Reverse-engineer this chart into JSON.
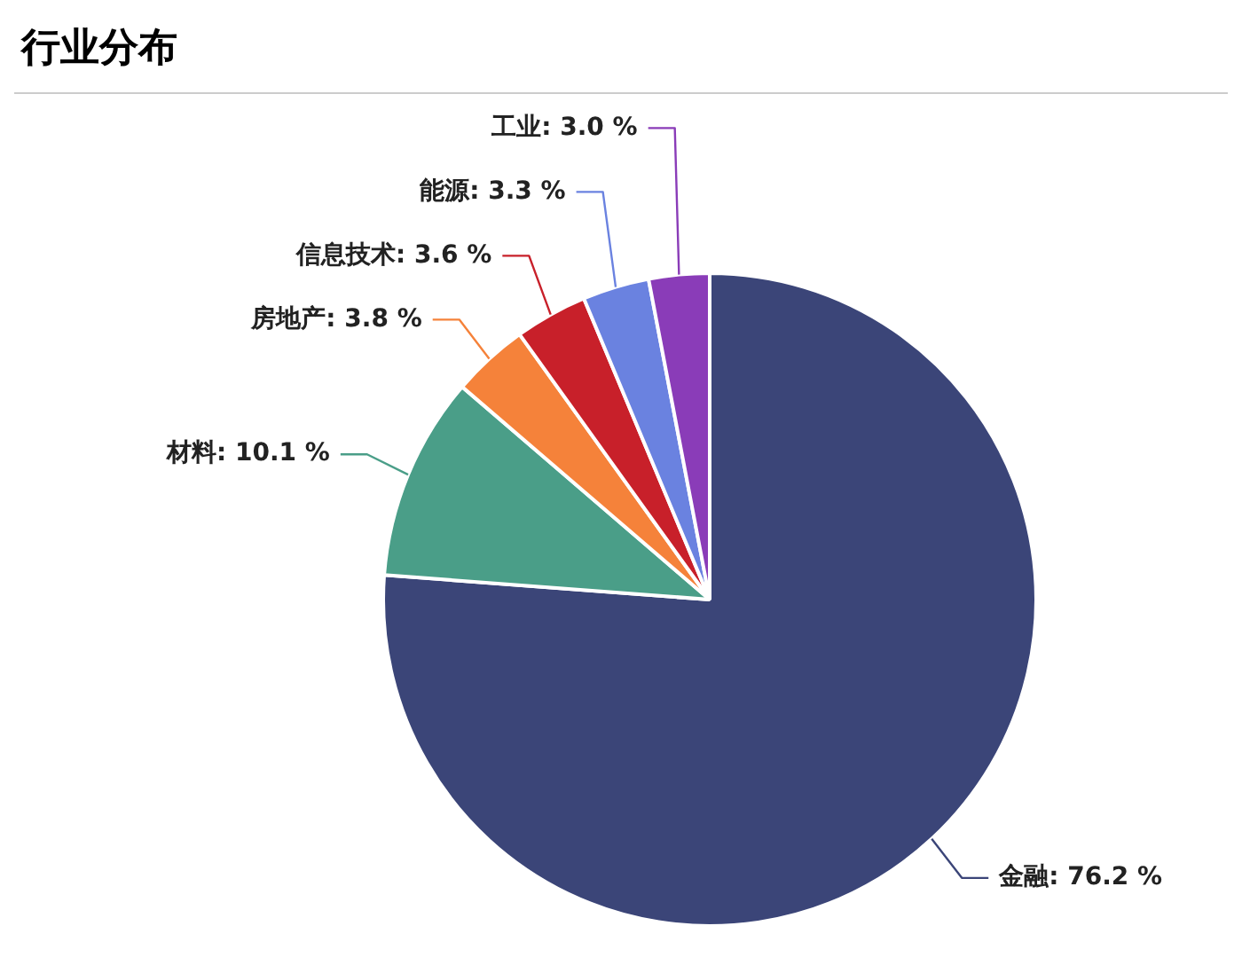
{
  "chart_data": {
    "type": "pie",
    "title": "行业分布",
    "categories": [
      "金融",
      "材料",
      "房地产",
      "信息技术",
      "能源",
      "工业"
    ],
    "values": [
      76.2,
      10.1,
      3.8,
      3.6,
      3.3,
      3.0
    ],
    "value_labels": [
      "76.2 %",
      "10.1 %",
      "3.8 %",
      "3.6 %",
      "3.3 %",
      "3.0 %"
    ],
    "colors": [
      "#3b4578",
      "#4a9e88",
      "#f5823a",
      "#c8202a",
      "#6a82e0",
      "#8a3cb8"
    ],
    "legend": false
  }
}
